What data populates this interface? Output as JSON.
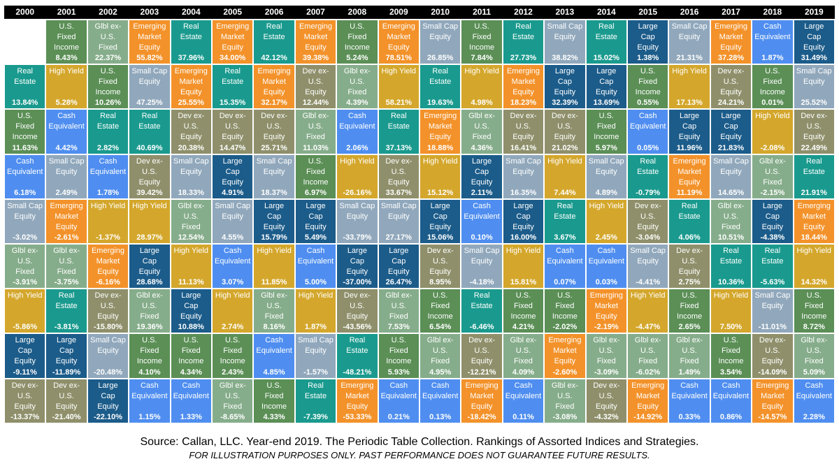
{
  "chart_data": {
    "type": "table",
    "years": [
      "2000",
      "2001",
      "2002",
      "2003",
      "2004",
      "2005",
      "2006",
      "2007",
      "2008",
      "2009",
      "2010",
      "2011",
      "2012",
      "2013",
      "2014",
      "2015",
      "2016",
      "2017",
      "2018",
      "2019"
    ],
    "asset_classes": {
      "RE": {
        "name": "Real\nEstate",
        "color": "#1a9a8e"
      },
      "USFI": {
        "name": "U.S.\nFixed\nIncome",
        "color": "#5b8f56"
      },
      "GBL": {
        "name": "Glbl ex-\nU.S.\nFixed",
        "color": "#86ad8b"
      },
      "EME": {
        "name": "Emerging\nMarket\nEquity",
        "color": "#f3922a"
      },
      "SCE": {
        "name": "Small Cap\nEquity",
        "color": "#91a8bc"
      },
      "HY": {
        "name": "High Yield",
        "color": "#d4a72c"
      },
      "CE": {
        "name": "Cash\nEquivalent",
        "color": "#4f8ef0"
      },
      "DEV": {
        "name": "Dev ex-\nU.S.\nEquity",
        "color": "#8f906b"
      },
      "LCE": {
        "name": "Large\nCap\nEquity",
        "color": "#1c5c8a"
      }
    },
    "columns": [
      [
        [
          "RE",
          "13.84%"
        ],
        [
          "USFI",
          "11.63%"
        ],
        [
          "CE",
          "6.18%"
        ],
        [
          "SCE",
          "-3.02%"
        ],
        [
          "GBL",
          "-3.91%"
        ],
        [
          "HY",
          "-5.86%"
        ],
        [
          "LCE",
          "-9.11%"
        ],
        [
          "DEV",
          "-13.37%"
        ]
      ],
      [
        [
          "USFI",
          "8.43%"
        ],
        [
          "HY",
          "5.28%"
        ],
        [
          "CE",
          "4.42%"
        ],
        [
          "SCE",
          "2.49%"
        ],
        [
          "EME",
          "-2.61%"
        ],
        [
          "GBL",
          "-3.75%"
        ],
        [
          "RE",
          "-3.81%"
        ],
        [
          "LCE",
          "-11.89%"
        ],
        [
          "DEV",
          "-21.40%"
        ]
      ],
      [
        [
          "GBL",
          "22.37%"
        ],
        [
          "USFI",
          "10.26%"
        ],
        [
          "RE",
          "2.82%"
        ],
        [
          "CE",
          "1.78%"
        ],
        [
          "HY",
          "-1.37%"
        ],
        [
          "EME",
          "-6.16%"
        ],
        [
          "DEV",
          "-15.80%"
        ],
        [
          "SCE",
          "-20.48%"
        ],
        [
          "LCE",
          "-22.10%"
        ]
      ],
      [
        [
          "EME",
          "55.82%"
        ],
        [
          "SCE",
          "47.25%"
        ],
        [
          "RE",
          "40.69%"
        ],
        [
          "DEV",
          "39.42%"
        ],
        [
          "HY",
          "28.97%"
        ],
        [
          "LCE",
          "28.68%"
        ],
        [
          "GBL",
          "19.36%"
        ],
        [
          "USFI",
          "4.10%"
        ],
        [
          "CE",
          "1.15%"
        ]
      ],
      [
        [
          "RE",
          "37.96%"
        ],
        [
          "EME",
          "25.55%"
        ],
        [
          "DEV",
          "20.38%"
        ],
        [
          "SCE",
          "18.33%"
        ],
        [
          "GBL",
          "12.54%"
        ],
        [
          "HY",
          "11.13%"
        ],
        [
          "LCE",
          "10.88%"
        ],
        [
          "USFI",
          "4.34%"
        ],
        [
          "CE",
          "1.33%"
        ]
      ],
      [
        [
          "EME",
          "34.00%"
        ],
        [
          "RE",
          "15.35%"
        ],
        [
          "DEV",
          "14.47%"
        ],
        [
          "LCE",
          "4.91%"
        ],
        [
          "SCE",
          "4.55%"
        ],
        [
          "CE",
          "3.07%"
        ],
        [
          "HY",
          "2.74%"
        ],
        [
          "USFI",
          "2.43%"
        ],
        [
          "GBL",
          "-8.65%"
        ]
      ],
      [
        [
          "RE",
          "42.12%"
        ],
        [
          "EME",
          "32.17%"
        ],
        [
          "DEV",
          "25.71%"
        ],
        [
          "SCE",
          "18.37%"
        ],
        [
          "LCE",
          "15.79%"
        ],
        [
          "HY",
          "11.85%"
        ],
        [
          "GBL",
          "8.16%"
        ],
        [
          "CE",
          "4.85%"
        ],
        [
          "USFI",
          "4.33%"
        ]
      ],
      [
        [
          "EME",
          "39.38%"
        ],
        [
          "DEV",
          "12.44%"
        ],
        [
          "GBL",
          "11.03%"
        ],
        [
          "USFI",
          "6.97%"
        ],
        [
          "LCE",
          "5.49%"
        ],
        [
          "CE",
          "5.00%"
        ],
        [
          "HY",
          "1.87%"
        ],
        [
          "SCE",
          "-1.57%"
        ],
        [
          "RE",
          "-7.39%"
        ]
      ],
      [
        [
          "USFI",
          "5.24%"
        ],
        [
          "GBL",
          "4.39%"
        ],
        [
          "CE",
          "2.06%"
        ],
        [
          "HY",
          "-26.16%"
        ],
        [
          "SCE",
          "-33.79%"
        ],
        [
          "LCE",
          "-37.00%"
        ],
        [
          "DEV",
          "-43.56%"
        ],
        [
          "RE",
          "-48.21%"
        ],
        [
          "EME",
          "-53.33%"
        ]
      ],
      [
        [
          "EME",
          "78.51%"
        ],
        [
          "HY",
          "58.21%"
        ],
        [
          "RE",
          "37.13%"
        ],
        [
          "DEV",
          "33.67%"
        ],
        [
          "SCE",
          "27.17%"
        ],
        [
          "LCE",
          "26.47%"
        ],
        [
          "GBL",
          "7.53%"
        ],
        [
          "USFI",
          "5.93%"
        ],
        [
          "CE",
          "0.21%"
        ]
      ],
      [
        [
          "SCE",
          "26.85%"
        ],
        [
          "RE",
          "19.63%"
        ],
        [
          "EME",
          "18.88%"
        ],
        [
          "HY",
          "15.12%"
        ],
        [
          "LCE",
          "15.06%"
        ],
        [
          "DEV",
          "8.95%"
        ],
        [
          "USFI",
          "6.54%"
        ],
        [
          "GBL",
          "4.95%"
        ],
        [
          "CE",
          "0.13%"
        ]
      ],
      [
        [
          "USFI",
          "7.84%"
        ],
        [
          "HY",
          "4.98%"
        ],
        [
          "GBL",
          "4.36%"
        ],
        [
          "LCE",
          "2.11%"
        ],
        [
          "CE",
          "0.10%"
        ],
        [
          "SCE",
          "-4.18%"
        ],
        [
          "RE",
          "-6.46%"
        ],
        [
          "DEV",
          "-12.21%"
        ],
        [
          "EME",
          "-18.42%"
        ]
      ],
      [
        [
          "RE",
          "27.73%"
        ],
        [
          "EME",
          "18.23%"
        ],
        [
          "DEV",
          "16.41%"
        ],
        [
          "SCE",
          "16.35%"
        ],
        [
          "LCE",
          "16.00%"
        ],
        [
          "HY",
          "15.81%"
        ],
        [
          "USFI",
          "4.21%"
        ],
        [
          "GBL",
          "4.09%"
        ],
        [
          "CE",
          "0.11%"
        ]
      ],
      [
        [
          "SCE",
          "38.82%"
        ],
        [
          "LCE",
          "32.39%"
        ],
        [
          "DEV",
          "21.02%"
        ],
        [
          "HY",
          "7.44%"
        ],
        [
          "RE",
          "3.67%"
        ],
        [
          "CE",
          "0.07%"
        ],
        [
          "USFI",
          "-2.02%"
        ],
        [
          "EME",
          "-2.60%"
        ],
        [
          "GBL",
          "-3.08%"
        ]
      ],
      [
        [
          "RE",
          "15.02%"
        ],
        [
          "LCE",
          "13.69%"
        ],
        [
          "USFI",
          "5.97%"
        ],
        [
          "SCE",
          "4.89%"
        ],
        [
          "HY",
          "2.45%"
        ],
        [
          "CE",
          "0.03%"
        ],
        [
          "EME",
          "-2.19%"
        ],
        [
          "GBL",
          "-3.09%"
        ],
        [
          "DEV",
          "-4.32%"
        ]
      ],
      [
        [
          "LCE",
          "1.38%"
        ],
        [
          "USFI",
          "0.55%"
        ],
        [
          "CE",
          "0.05%"
        ],
        [
          "RE",
          "-0.79%"
        ],
        [
          "DEV",
          "-3.04%"
        ],
        [
          "SCE",
          "-4.41%"
        ],
        [
          "HY",
          "-4.47%"
        ],
        [
          "GBL",
          "-6.02%"
        ],
        [
          "EME",
          "-14.92%"
        ]
      ],
      [
        [
          "SCE",
          "21.31%"
        ],
        [
          "HY",
          "17.13%"
        ],
        [
          "LCE",
          "11.96%"
        ],
        [
          "EME",
          "11.19%"
        ],
        [
          "RE",
          "4.06%"
        ],
        [
          "DEV",
          "2.75%"
        ],
        [
          "USFI",
          "2.65%"
        ],
        [
          "GBL",
          "1.49%"
        ],
        [
          "CE",
          "0.33%"
        ]
      ],
      [
        [
          "EME",
          "37.28%"
        ],
        [
          "DEV",
          "24.21%"
        ],
        [
          "LCE",
          "21.83%"
        ],
        [
          "SCE",
          "14.65%"
        ],
        [
          "GBL",
          "10.51%"
        ],
        [
          "RE",
          "10.36%"
        ],
        [
          "HY",
          "7.50%"
        ],
        [
          "USFI",
          "3.54%"
        ],
        [
          "CE",
          "0.86%"
        ]
      ],
      [
        [
          "CE",
          "1.87%"
        ],
        [
          "USFI",
          "0.01%"
        ],
        [
          "HY",
          "-2.08%"
        ],
        [
          "GBL",
          "-2.15%"
        ],
        [
          "LCE",
          "-4.38%"
        ],
        [
          "RE",
          "-5.63%"
        ],
        [
          "SCE",
          "-11.01%"
        ],
        [
          "DEV",
          "-14.09%"
        ],
        [
          "EME",
          "-14.57%"
        ]
      ],
      [
        [
          "LCE",
          "31.49%"
        ],
        [
          "SCE",
          "25.52%"
        ],
        [
          "DEV",
          "22.49%"
        ],
        [
          "RE",
          "21.91%"
        ],
        [
          "EME",
          "18.44%"
        ],
        [
          "HY",
          "14.32%"
        ],
        [
          "USFI",
          "8.72%"
        ],
        [
          "GBL",
          "5.09%"
        ],
        [
          "CE",
          "2.28%"
        ]
      ]
    ]
  },
  "footer": {
    "source": "Source: Callan, LLC. Year-end 2019.  The Periodic Table Collection.  Rankings of Assorted Indices and Strategies.",
    "disclaimer": "FOR ILLUSTRATION PURPOSES ONLY.  PAST PERFORMANCE DOES NOT GUARANTEE FUTURE RESULTS."
  }
}
